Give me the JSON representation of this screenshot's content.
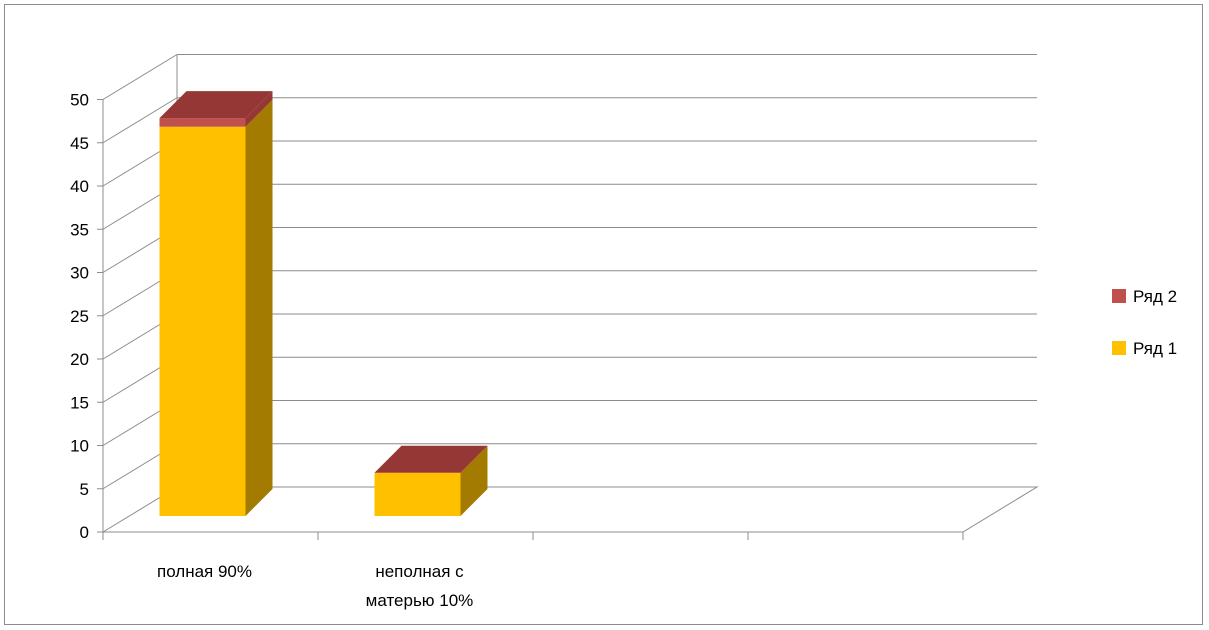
{
  "chart_data": {
    "type": "bar",
    "stacked": true,
    "view": "3d",
    "categories": [
      [
        "полная 90%"
      ],
      [
        "неполная с",
        "матерью 10%"
      ],
      [
        ""
      ],
      [
        ""
      ]
    ],
    "series": [
      {
        "name": "Ряд 1",
        "values": [
          45,
          5,
          0,
          0
        ],
        "color": "#FFC000",
        "side_color": "#A37B00"
      },
      {
        "name": "Ряд 2",
        "values": [
          1,
          0,
          0,
          0
        ],
        "color": "#C0504D",
        "top_color": "#953735"
      }
    ],
    "ylim": [
      0,
      50
    ],
    "yticks": [
      0,
      5,
      10,
      15,
      20,
      25,
      30,
      35,
      40,
      45,
      50
    ],
    "grid": true,
    "legend_position": "right",
    "legend_order": [
      "Ряд 2",
      "Ряд 1"
    ],
    "title": "",
    "xlabel": "",
    "ylabel": ""
  }
}
